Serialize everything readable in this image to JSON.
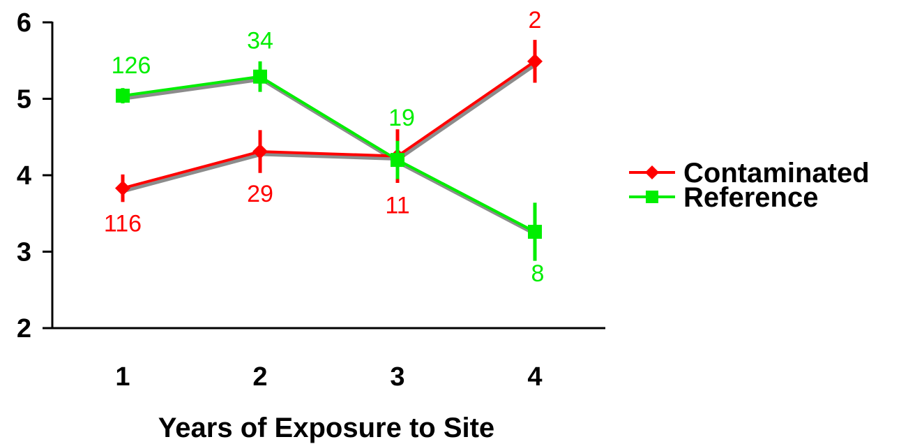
{
  "chart_data": {
    "type": "line",
    "title": "",
    "xlabel": "Years of Exposure to Site",
    "ylabel": "",
    "x": [
      1,
      2,
      3,
      4
    ],
    "x_tick_labels": [
      "1",
      "2",
      "3",
      "4"
    ],
    "ylim": [
      2,
      6
    ],
    "y_ticks": [
      2,
      3,
      4,
      5,
      6
    ],
    "y_tick_labels": [
      "2",
      "3",
      "4",
      "5",
      "6"
    ],
    "grid": false,
    "legend_position": "right",
    "series": [
      {
        "name": "Contaminated",
        "color": "#ff0000",
        "marker": "diamond",
        "values": [
          3.83,
          4.31,
          4.25,
          5.49
        ],
        "error": [
          0.18,
          0.28,
          0.35,
          0.28
        ],
        "n_labels": [
          "116",
          "29",
          "11",
          "2"
        ]
      },
      {
        "name": "Reference",
        "color": "#00ee00",
        "marker": "square",
        "values": [
          5.04,
          5.29,
          4.2,
          3.26
        ],
        "error": [
          0.1,
          0.2,
          0.25,
          0.38
        ],
        "n_labels": [
          "126",
          "34",
          "19",
          "8"
        ]
      }
    ]
  }
}
